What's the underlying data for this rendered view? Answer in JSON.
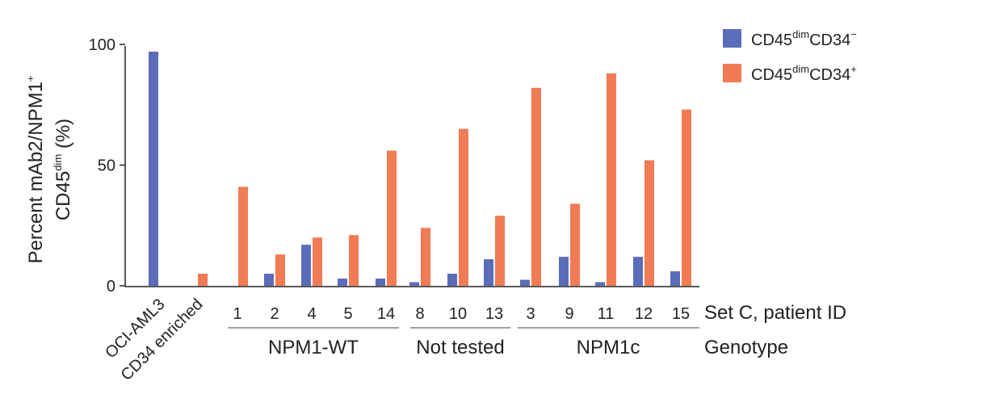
{
  "chart_data": {
    "type": "bar",
    "ylabel_line1": "Percent mAb2/NPM1",
    "ylabel_line1_sup": "+",
    "ylabel_line2": "CD45",
    "ylabel_line2_sup": "dim",
    "ylabel_line2_suffix": " (%)",
    "ylim": [
      0,
      100
    ],
    "yticks": [
      "0",
      "50",
      "100"
    ],
    "ytick_values": [
      0,
      50,
      100
    ],
    "categories": [
      "OCI-AML3",
      "CD34 enriched",
      "1",
      "2",
      "4",
      "5",
      "14",
      "8",
      "10",
      "13",
      "3",
      "9",
      "11",
      "12",
      "15"
    ],
    "series": [
      {
        "name": "CD45dimCD34−",
        "legend_main": "CD45",
        "legend_sup1": "dim",
        "legend_mid": "CD34",
        "legend_sup2": "−",
        "color": "#5b6db8",
        "values": [
          97,
          null,
          null,
          5,
          17,
          3,
          3,
          1.5,
          5,
          11,
          2.5,
          12,
          1.5,
          12,
          6
        ]
      },
      {
        "name": "CD45dimCD34+",
        "legend_main": "CD45",
        "legend_sup1": "dim",
        "legend_mid": "CD34",
        "legend_sup2": "+",
        "color": "#f07b55",
        "values": [
          null,
          5,
          41,
          13,
          20,
          21,
          56,
          24,
          65,
          29,
          82,
          34,
          88,
          52,
          73
        ]
      }
    ],
    "x_axis_label": "Set C, patient ID",
    "genotype_label": "Genotype",
    "groups": [
      {
        "label": "NPM1-WT",
        "color": "#222222"
      },
      {
        "label": "Not tested",
        "color": "#222222"
      },
      {
        "label": "NPM1c",
        "color": "#1aa7d4"
      }
    ],
    "grid": false,
    "legend_position": "top-right"
  }
}
